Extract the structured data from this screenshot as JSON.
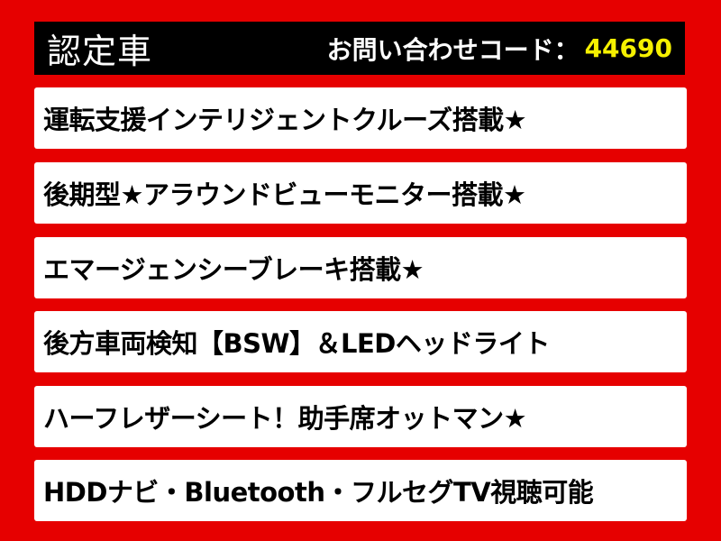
{
  "header": {
    "title": "認定車",
    "inquiry_label": "お問い合わせコード：",
    "inquiry_code": "44690"
  },
  "colors": {
    "background": "#e60000",
    "header_bg": "#000000",
    "code": "#f5f000"
  },
  "features": [
    "運転支援インテリジェントクルーズ搭載★",
    "後期型★アラウンドビューモニター搭載★",
    "エマージェンシーブレーキ搭載★",
    "後方車両検知【BSW】＆LEDヘッドライト",
    "ハーフレザーシート！助手席オットマン★",
    "HDDナビ・Bluetooth・フルセグTV視聴可能"
  ]
}
